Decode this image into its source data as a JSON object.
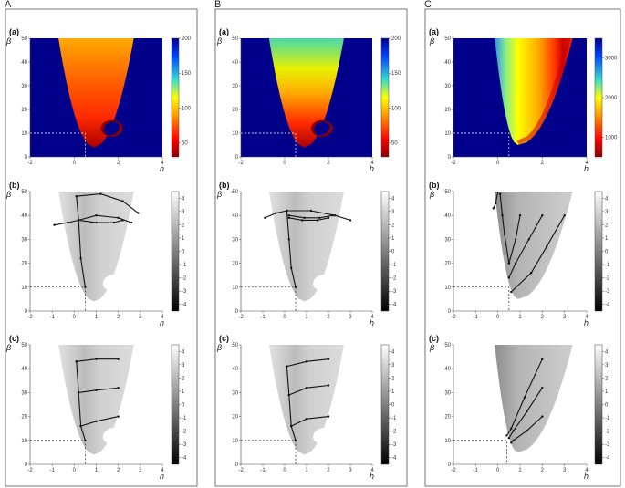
{
  "column_labels": [
    "A",
    "B",
    "C"
  ],
  "panel_labels": [
    "(a)",
    "(b)",
    "(c)"
  ],
  "axis_symbols": {
    "x": "h",
    "y": "β"
  },
  "colors": {
    "cmap_low": "#8b0000",
    "cmap_high": "#00008b",
    "background_region": "#00008b"
  },
  "chart_data": [
    {
      "type": "heatmap",
      "column": "A",
      "panel": "(a)",
      "x_ticks": [
        "-2",
        "0",
        "2",
        "4"
      ],
      "y_ticks": [
        "0",
        "10",
        "20",
        "30",
        "40",
        "50"
      ],
      "xlim": [
        -2,
        4
      ],
      "ylim": [
        0,
        50
      ],
      "colorbar": {
        "ticks": [
          "200",
          "150",
          "100",
          "50"
        ],
        "range": [
          30,
          200
        ],
        "colormap": "jet-reversed"
      },
      "reference_point": {
        "h": 0.5,
        "beta": 10
      },
      "hole": {
        "h": 1.7,
        "beta": 12
      }
    },
    {
      "type": "heatmap",
      "column": "B",
      "panel": "(a)",
      "x_ticks": [
        "-2",
        "0",
        "2",
        "4"
      ],
      "y_ticks": [
        "0",
        "10",
        "20",
        "30",
        "40",
        "50"
      ],
      "xlim": [
        -2,
        4
      ],
      "ylim": [
        0,
        50
      ],
      "colorbar": {
        "ticks": [
          "200",
          "150",
          "100",
          "50"
        ],
        "range": [
          30,
          200
        ],
        "colormap": "jet-reversed"
      },
      "reference_point": {
        "h": 0.5,
        "beta": 10
      },
      "hole": {
        "h": 1.7,
        "beta": 12
      }
    },
    {
      "type": "heatmap",
      "column": "C",
      "panel": "(a)",
      "x_ticks": [
        "-2",
        "0",
        "2",
        "4"
      ],
      "y_ticks": [
        "0",
        "10",
        "20",
        "30",
        "40",
        "50"
      ],
      "xlim": [
        -2,
        4
      ],
      "ylim": [
        0,
        50
      ],
      "colorbar": {
        "ticks": [
          "3000",
          "2000",
          "1000"
        ],
        "range": [
          500,
          3500
        ],
        "colormap": "jet-reversed"
      },
      "reference_point": {
        "h": 0.5,
        "beta": 10
      }
    },
    {
      "type": "heatmap",
      "column": "A",
      "panel": "(b)",
      "x_ticks": [
        "-2",
        "-1",
        "0",
        "1",
        "2",
        "3",
        "4"
      ],
      "y_ticks": [
        "0",
        "10",
        "20",
        "30",
        "40",
        "50"
      ],
      "xlim": [
        -2,
        4
      ],
      "ylim": [
        0,
        50
      ],
      "colorbar": {
        "ticks": [
          "4",
          "3",
          "2",
          "1",
          "0",
          "-1",
          "-2",
          "-3",
          "-4"
        ],
        "range": [
          -4.5,
          4.5
        ],
        "colormap": "gray"
      },
      "reference_point": {
        "h": 0.5,
        "beta": 10
      },
      "trajectories": [
        [
          [
            0.1,
            48
          ],
          [
            0.2,
            38
          ],
          [
            0.3,
            22
          ],
          [
            0.5,
            10
          ]
        ],
        [
          [
            0.1,
            48
          ],
          [
            1.2,
            49
          ],
          [
            2.2,
            46
          ],
          [
            2.9,
            41
          ]
        ],
        [
          [
            0.2,
            38
          ],
          [
            1.0,
            40
          ],
          [
            2.0,
            39
          ],
          [
            2.6,
            37
          ]
        ],
        [
          [
            0.2,
            38
          ],
          [
            -0.3,
            37
          ],
          [
            -0.9,
            36
          ]
        ],
        [
          [
            0.2,
            38
          ],
          [
            1.0,
            37
          ],
          [
            1.8,
            37
          ],
          [
            2.2,
            38
          ]
        ]
      ]
    },
    {
      "type": "heatmap",
      "column": "B",
      "panel": "(b)",
      "x_ticks": [
        "-2",
        "-1",
        "0",
        "1",
        "2",
        "3",
        "4"
      ],
      "y_ticks": [
        "0",
        "10",
        "20",
        "30",
        "40",
        "50"
      ],
      "xlim": [
        -2,
        4
      ],
      "ylim": [
        0,
        50
      ],
      "colorbar": {
        "ticks": [
          "4",
          "3",
          "2",
          "1",
          "0",
          "-1",
          "-2",
          "-3",
          "-4"
        ],
        "range": [
          -4.5,
          4.5
        ],
        "colormap": "gray"
      },
      "reference_point": {
        "h": 0.5,
        "beta": 10
      },
      "trajectories": [
        [
          [
            0.1,
            42
          ],
          [
            0.2,
            30
          ],
          [
            0.3,
            18
          ],
          [
            0.5,
            10
          ]
        ],
        [
          [
            0.1,
            42
          ],
          [
            1.2,
            42
          ],
          [
            2.3,
            40
          ],
          [
            3.0,
            38
          ]
        ],
        [
          [
            0.1,
            42
          ],
          [
            -0.4,
            41
          ],
          [
            -0.9,
            39
          ]
        ],
        [
          [
            0.2,
            40
          ],
          [
            0.9,
            39
          ],
          [
            1.6,
            39
          ],
          [
            2.2,
            40
          ]
        ],
        [
          [
            0.2,
            39
          ],
          [
            0.8,
            38
          ],
          [
            1.5,
            38
          ],
          [
            2.0,
            39
          ]
        ]
      ]
    },
    {
      "type": "heatmap",
      "column": "C",
      "panel": "(b)",
      "x_ticks": [
        "-2",
        "-1",
        "0",
        "1",
        "2",
        "3",
        "4"
      ],
      "y_ticks": [
        "0",
        "10",
        "20",
        "30",
        "40",
        "50"
      ],
      "xlim": [
        -2,
        4
      ],
      "ylim": [
        0,
        50
      ],
      "colorbar": {
        "ticks": [
          "4",
          "3",
          "2",
          "1",
          "0",
          "-1",
          "-2",
          "-3",
          "-4"
        ],
        "range": [
          -4.5,
          4.5
        ],
        "colormap": "gray"
      },
      "reference_point": {
        "h": 0.5,
        "beta": 10
      },
      "trajectories": [
        [
          [
            0.0,
            50
          ],
          [
            -0.1,
            45
          ],
          [
            -0.2,
            43
          ]
        ],
        [
          [
            0.1,
            49
          ],
          [
            0.2,
            40
          ],
          [
            0.3,
            32
          ],
          [
            0.5,
            20
          ]
        ],
        [
          [
            1.0,
            40
          ],
          [
            0.8,
            30
          ],
          [
            0.5,
            20
          ]
        ],
        [
          [
            2.0,
            40
          ],
          [
            1.4,
            30
          ],
          [
            0.8,
            20
          ],
          [
            0.5,
            14
          ]
        ],
        [
          [
            3.0,
            40
          ],
          [
            2.2,
            27
          ],
          [
            1.5,
            16
          ],
          [
            0.6,
            8
          ]
        ]
      ]
    },
    {
      "type": "heatmap",
      "column": "A",
      "panel": "(c)",
      "x_ticks": [
        "-2",
        "-1",
        "0",
        "1",
        "2",
        "3",
        "4"
      ],
      "y_ticks": [
        "0",
        "10",
        "20",
        "30",
        "40",
        "50"
      ],
      "xlim": [
        -2,
        4
      ],
      "ylim": [
        0,
        50
      ],
      "colorbar": {
        "ticks": [
          "4",
          "3",
          "2",
          "1",
          "0",
          "-1",
          "-2",
          "-3",
          "-4"
        ],
        "range": [
          -4.5,
          4.5
        ],
        "colormap": "gray"
      },
      "reference_point": {
        "h": 0.5,
        "beta": 10
      },
      "trajectories": [
        [
          [
            0.1,
            43
          ],
          [
            0.2,
            30
          ],
          [
            0.3,
            16
          ],
          [
            0.5,
            10
          ]
        ],
        [
          [
            0.1,
            43
          ],
          [
            1.0,
            44
          ],
          [
            2.0,
            44
          ]
        ],
        [
          [
            0.2,
            30
          ],
          [
            1.0,
            31
          ],
          [
            2.0,
            32
          ]
        ],
        [
          [
            0.3,
            16
          ],
          [
            1.0,
            18
          ],
          [
            2.0,
            20
          ]
        ]
      ]
    },
    {
      "type": "heatmap",
      "column": "B",
      "panel": "(c)",
      "x_ticks": [
        "-2",
        "-1",
        "0",
        "1",
        "2",
        "3",
        "4"
      ],
      "y_ticks": [
        "0",
        "10",
        "20",
        "30",
        "40",
        "50"
      ],
      "xlim": [
        -2,
        4
      ],
      "ylim": [
        0,
        50
      ],
      "colorbar": {
        "ticks": [
          "4",
          "3",
          "2",
          "1",
          "0",
          "-1",
          "-2",
          "-3",
          "-4"
        ],
        "range": [
          -4.5,
          4.5
        ],
        "colormap": "gray"
      },
      "reference_point": {
        "h": 0.5,
        "beta": 10
      },
      "trajectories": [
        [
          [
            0.1,
            41
          ],
          [
            0.2,
            29
          ],
          [
            0.3,
            16
          ],
          [
            0.5,
            10
          ]
        ],
        [
          [
            0.1,
            41
          ],
          [
            1.0,
            43
          ],
          [
            2.0,
            44
          ]
        ],
        [
          [
            0.2,
            29
          ],
          [
            1.0,
            32
          ],
          [
            2.0,
            33
          ]
        ],
        [
          [
            0.3,
            16
          ],
          [
            1.0,
            19
          ],
          [
            2.0,
            20
          ]
        ]
      ]
    },
    {
      "type": "heatmap",
      "column": "C",
      "panel": "(c)",
      "x_ticks": [
        "-2",
        "-1",
        "0",
        "1",
        "2",
        "3",
        "4"
      ],
      "y_ticks": [
        "0",
        "10",
        "20",
        "30",
        "40",
        "50"
      ],
      "xlim": [
        -2,
        4
      ],
      "ylim": [
        0,
        50
      ],
      "colorbar": {
        "ticks": [
          "4",
          "3",
          "2",
          "1",
          "0",
          "-1",
          "-2",
          "-3",
          "-4"
        ],
        "range": [
          -4.5,
          4.5
        ],
        "colormap": "gray"
      },
      "reference_point": {
        "h": 0.4,
        "beta": 10
      },
      "trajectories": [
        [
          [
            2.0,
            44
          ],
          [
            1.2,
            28
          ],
          [
            0.6,
            15
          ],
          [
            0.4,
            12
          ]
        ],
        [
          [
            2.0,
            32
          ],
          [
            1.3,
            22
          ],
          [
            0.7,
            14
          ],
          [
            0.5,
            11
          ]
        ],
        [
          [
            2.0,
            20
          ],
          [
            1.3,
            14
          ],
          [
            0.7,
            10
          ],
          [
            0.6,
            9
          ]
        ]
      ]
    }
  ]
}
